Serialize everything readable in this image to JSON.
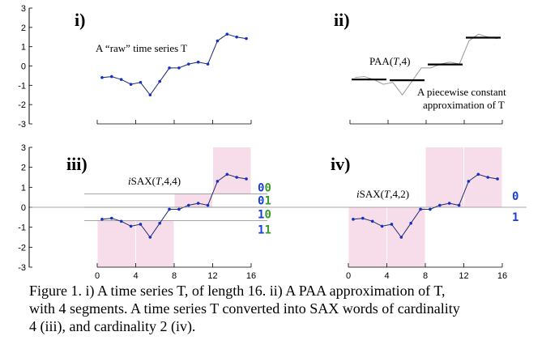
{
  "caption": {
    "line1": "Figure 1. i) A time series T, of length 16. ii) A PAA approximation of T,",
    "line2": "with 4 segments.  A time series T converted into SAX words of cardinality",
    "line3": "4 (iii), and cardinality 2 (iv)."
  },
  "colors": {
    "series": "#1f2b6b",
    "points": "#1030c8",
    "paa_series": "#999999",
    "paa_bar": "#000000",
    "shade": "#f7dcea",
    "code_blue": "#1a3fd6",
    "code_green": "#3a9a2a",
    "guide": "#888888"
  },
  "chart_data": [
    {
      "panel": "i)",
      "type": "line",
      "annotation": "A “raw” time series T",
      "x": [
        1,
        2,
        3,
        4,
        5,
        6,
        7,
        8,
        9,
        10,
        11,
        12,
        13,
        14,
        15,
        16
      ],
      "y": [
        -0.6,
        -0.55,
        -0.7,
        -0.95,
        -0.85,
        -1.5,
        -0.8,
        -0.1,
        -0.1,
        0.1,
        0.2,
        0.1,
        1.3,
        1.65,
        1.5,
        1.42
      ],
      "yticks": [
        -3,
        -2,
        -1,
        0,
        1,
        2,
        3
      ],
      "ylim": [
        -3,
        3
      ],
      "xlim": [
        0,
        16
      ]
    },
    {
      "panel": "ii)",
      "type": "line",
      "annotation_top": "PAA(T,4)",
      "annotation_bottom_1": "A piecewise constant",
      "annotation_bottom_2": "approximation of T",
      "segments": [
        {
          "x0": 0,
          "x1": 4,
          "value": -0.7
        },
        {
          "x0": 4,
          "x1": 8,
          "value": -0.74
        },
        {
          "x0": 8,
          "x1": 12,
          "value": 0.08
        },
        {
          "x0": 12,
          "x1": 16,
          "value": 1.47
        }
      ]
    },
    {
      "panel": "iii)",
      "type": "line",
      "annotation": "iSAX(T,4,4)",
      "xticks": [
        0,
        4,
        8,
        12,
        16
      ],
      "yticks": [
        -3,
        -2,
        -1,
        0,
        1,
        2,
        3
      ],
      "breakpoints": [
        -0.67,
        0,
        0.67
      ],
      "shaded_segments": [
        {
          "x0": 0,
          "x1": 4,
          "region_low": -3,
          "region_high": -0.67
        },
        {
          "x0": 4,
          "x1": 8,
          "region_low": -3,
          "region_high": -0.67
        },
        {
          "x0": 8,
          "x1": 12,
          "region_low": 0,
          "region_high": 0.67
        },
        {
          "x0": 12,
          "x1": 16,
          "region_low": 0.67,
          "region_high": 3
        }
      ],
      "codes": [
        {
          "first": "0",
          "second": "0"
        },
        {
          "first": "0",
          "second": "1"
        },
        {
          "first": "1",
          "second": "0"
        },
        {
          "first": "1",
          "second": "1"
        }
      ]
    },
    {
      "panel": "iv)",
      "type": "line",
      "annotation": "iSAX(T,4,2)",
      "xticks": [
        0,
        4,
        8,
        12,
        16
      ],
      "breakpoints": [
        0
      ],
      "shaded_segments": [
        {
          "x0": 0,
          "x1": 4,
          "region_low": -3,
          "region_high": 0
        },
        {
          "x0": 4,
          "x1": 8,
          "region_low": -3,
          "region_high": 0
        },
        {
          "x0": 8,
          "x1": 12,
          "region_low": 0,
          "region_high": 3
        },
        {
          "x0": 12,
          "x1": 16,
          "region_low": 0,
          "region_high": 3
        }
      ],
      "codes": [
        "0",
        "1"
      ]
    }
  ]
}
